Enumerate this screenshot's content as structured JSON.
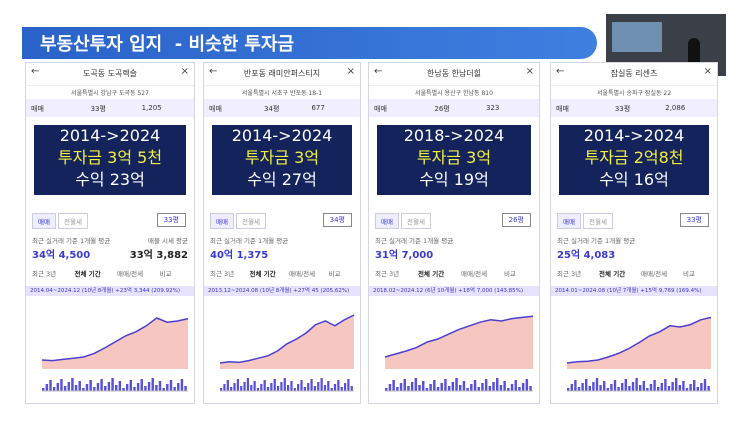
{
  "slide": {
    "title": "부동산투자 입지  - 비슷한 투자금"
  },
  "panels": [
    {
      "name": "도곡동 도곡렉슬",
      "address": "서울특별시 강남구 도곡동 527",
      "trade": "매매",
      "size": "33평",
      "count": "1,205",
      "period": "2014->2024",
      "invest": "투자금 3억 5천",
      "profit": "수익 23억",
      "tabs": [
        "매매",
        "전월세"
      ],
      "select": "33평",
      "recent_label": "최근 실거래 기준 1개월 평균",
      "recent_price": "34억 4,500",
      "listing_label": "매물 시세 평균",
      "listing_price": "33억 3,882",
      "range_tabs": [
        "최근 3년",
        "전체 기간",
        "매매/전세",
        "비교"
      ],
      "range": "2014.04~2024.12 (10년 8개월) +23억 3,344 (209.92%)"
    },
    {
      "name": "반포동 래미안퍼스티지",
      "address": "서울특별시 서초구 반포동 18-1",
      "trade": "매매",
      "size": "34평",
      "count": "677",
      "period": "2014->2024",
      "invest": "투자금 3억",
      "profit": "수익 27억",
      "tabs": [
        "매매",
        "전월세"
      ],
      "select": "34평",
      "recent_label": "최근 실거래 기준 1개월 평균",
      "recent_price": "40억 1,375",
      "range_tabs": [
        "최근 3년",
        "전체 기간",
        "매매/전세",
        "비교"
      ],
      "range": "2013.12~2024.08 (10년 8개월) +27억 45 (205.62%)"
    },
    {
      "name": "한남동 한남더힐",
      "address": "서울특별시 용산구 한남동 810",
      "trade": "매매",
      "size": "26평",
      "count": "323",
      "period": "2018->2024",
      "invest": "투자금 3억",
      "profit": "수익 19억",
      "tabs": [
        "매매",
        "전월세"
      ],
      "select": "26평",
      "recent_label": "최근 실거래 기준 1개월 평균",
      "recent_price": "31억 7,000",
      "range_tabs": [
        "최근 3년",
        "전체 기간",
        "매매/전세",
        "비교"
      ],
      "range": "2018.02~2024.12 (6년 10개월) +18억 7,000 (143.85%)"
    },
    {
      "name": "잠실동 리센츠",
      "address": "서울특별시 송파구 잠실동 22",
      "trade": "매매",
      "size": "33평",
      "count": "2,086",
      "period": "2014->2024",
      "invest": "투자금 2억8천",
      "profit": "수익 16억",
      "tabs": [
        "매매",
        "전월세"
      ],
      "select": "33평",
      "recent_label": "최근 실거래 기준 1개월 평균",
      "recent_price": "25억 4,083",
      "range_tabs": [
        "최근 3년",
        "전체 기간",
        "매매/전세",
        "비교"
      ],
      "range": "2014.01~2024.08 (10년 7개월) +15억 9,769 (169.4%)"
    }
  ]
}
